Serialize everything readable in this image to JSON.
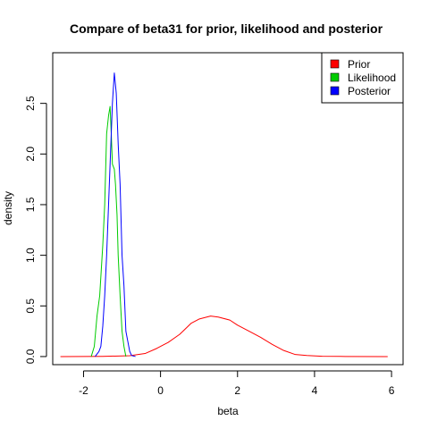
{
  "chart_data": {
    "type": "line",
    "title": "Compare of beta31 for prior, likelihood and posterior",
    "xlabel": "beta",
    "ylabel": "density",
    "xlim": [
      -2.8,
      6.3
    ],
    "ylim": [
      -0.08,
      3.0
    ],
    "xticks": [
      -2,
      0,
      2,
      4,
      6
    ],
    "xtick_labels": [
      "-2",
      "0",
      "2",
      "4",
      "6"
    ],
    "yticks": [
      0.0,
      0.5,
      1.0,
      1.5,
      2.0,
      2.5
    ],
    "ytick_labels": [
      "0.0",
      "0.5",
      "1.0",
      "1.5",
      "2.0",
      "2.5"
    ],
    "grid": false,
    "legend_position": "top-right",
    "series": [
      {
        "name": "Prior",
        "color": "#ff0000",
        "x": [
          -2.6,
          -1.5,
          -0.8,
          -0.4,
          -0.1,
          0.2,
          0.5,
          0.8,
          1.0,
          1.3,
          1.5,
          1.8,
          2.0,
          2.3,
          2.6,
          2.9,
          3.2,
          3.5,
          3.8,
          4.2,
          4.8,
          5.9
        ],
        "y": [
          0.0,
          0.002,
          0.008,
          0.03,
          0.08,
          0.14,
          0.22,
          0.33,
          0.37,
          0.4,
          0.39,
          0.36,
          0.31,
          0.25,
          0.19,
          0.12,
          0.06,
          0.02,
          0.01,
          0.003,
          0.001,
          0.0
        ]
      },
      {
        "name": "Likelihood",
        "color": "#00cc00",
        "x": [
          -1.8,
          -1.72,
          -1.65,
          -1.58,
          -1.5,
          -1.45,
          -1.4,
          -1.35,
          -1.31,
          -1.28,
          -1.25,
          -1.2,
          -1.17,
          -1.13,
          -1.1,
          -1.05,
          -1.0,
          -0.95,
          -0.9
        ],
        "y": [
          0.0,
          0.1,
          0.4,
          0.6,
          1.1,
          1.5,
          2.2,
          2.38,
          2.47,
          2.2,
          1.9,
          1.85,
          1.7,
          1.4,
          1.0,
          0.6,
          0.25,
          0.1,
          0.0
        ]
      },
      {
        "name": "Posterior",
        "color": "#0000ff",
        "x": [
          -1.7,
          -1.6,
          -1.55,
          -1.5,
          -1.45,
          -1.4,
          -1.35,
          -1.3,
          -1.25,
          -1.2,
          -1.15,
          -1.1,
          -1.05,
          -1.0,
          -0.95,
          -0.9,
          -0.85,
          -0.8,
          -0.75,
          -0.65
        ],
        "y": [
          0.0,
          0.05,
          0.1,
          0.3,
          0.6,
          1.0,
          1.5,
          2.0,
          2.5,
          2.8,
          2.6,
          2.1,
          1.7,
          1.0,
          0.7,
          0.25,
          0.15,
          0.05,
          0.01,
          0.0
        ]
      }
    ]
  }
}
